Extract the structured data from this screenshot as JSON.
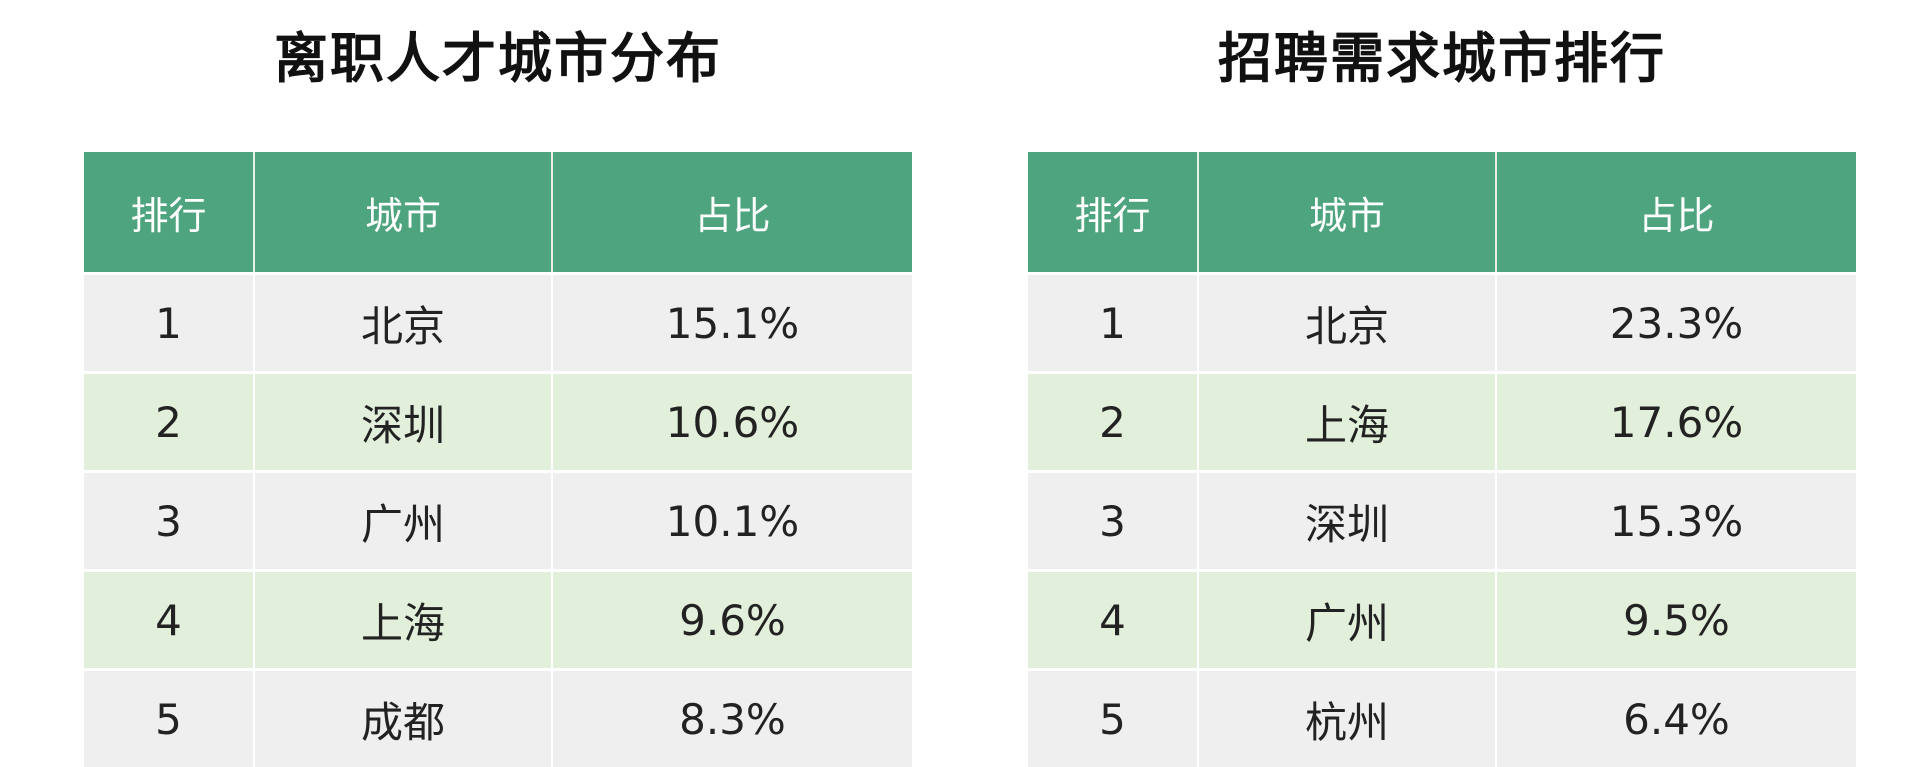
{
  "colors": {
    "header_bg": "#4ea47e",
    "header_text": "#ffffff",
    "row_odd_bg": "#efefef",
    "row_even_bg": "#e2efda",
    "title_text": "#111111"
  },
  "chart_data": [
    {
      "type": "table",
      "title": "离职人才城市分布",
      "columns": [
        "排行",
        "城市",
        "占比"
      ],
      "rows": [
        [
          "1",
          "北京",
          "15.1%"
        ],
        [
          "2",
          "深圳",
          "10.6%"
        ],
        [
          "3",
          "广州",
          "10.1%"
        ],
        [
          "4",
          "上海",
          "9.6%"
        ],
        [
          "5",
          "成都",
          "8.3%"
        ]
      ]
    },
    {
      "type": "table",
      "title": "招聘需求城市排行",
      "columns": [
        "排行",
        "城市",
        "占比"
      ],
      "rows": [
        [
          "1",
          "北京",
          "23.3%"
        ],
        [
          "2",
          "上海",
          "17.6%"
        ],
        [
          "3",
          "深圳",
          "15.3%"
        ],
        [
          "4",
          "广州",
          "9.5%"
        ],
        [
          "5",
          "杭州",
          "6.4%"
        ]
      ]
    }
  ]
}
